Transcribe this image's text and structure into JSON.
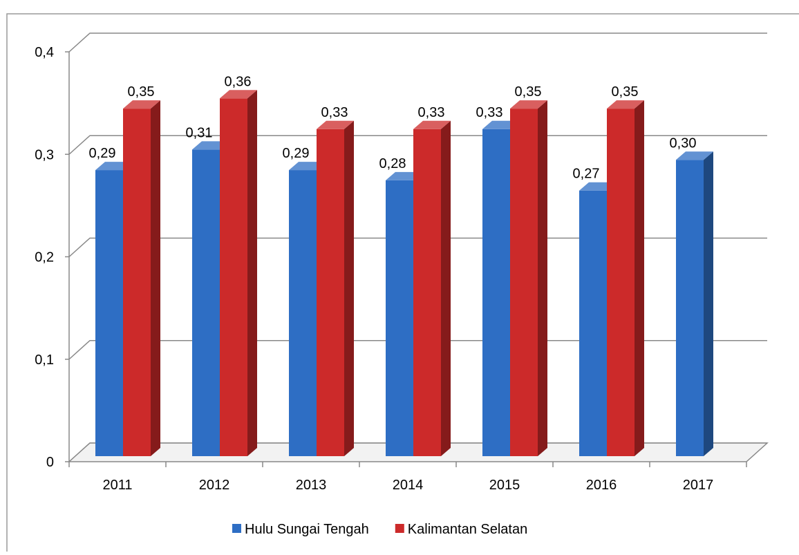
{
  "chart_data": {
    "type": "bar3d",
    "categories": [
      "2011",
      "2012",
      "2013",
      "2014",
      "2015",
      "2016",
      "2017"
    ],
    "series": [
      {
        "name": "Hulu Sungai Tengah",
        "color": "#2e6ec4",
        "values": [
          0.29,
          0.31,
          0.29,
          0.28,
          0.33,
          0.27,
          0.3
        ],
        "value_labels": [
          "0,29",
          "0,31",
          "0,29",
          "0,28",
          "0,33",
          "0,27",
          "0,30"
        ]
      },
      {
        "name": "Kalimantan Selatan",
        "color": "#cc2a2a",
        "values": [
          0.35,
          0.36,
          0.33,
          0.33,
          0.35,
          0.35,
          null
        ],
        "value_labels": [
          "0,35",
          "0,36",
          "0,33",
          "0,33",
          "0,35",
          "0,35",
          null
        ]
      }
    ],
    "ylim": [
      0,
      0.4
    ],
    "yticks": [
      0,
      {
        "value": 0.1,
        "label": "0,1"
      },
      {
        "value": 0.2,
        "label": "0,2"
      },
      {
        "value": 0.3,
        "label": "0,3"
      },
      {
        "value": 0.4,
        "label": "0,4"
      }
    ],
    "grid": true,
    "legend": "bottom"
  }
}
